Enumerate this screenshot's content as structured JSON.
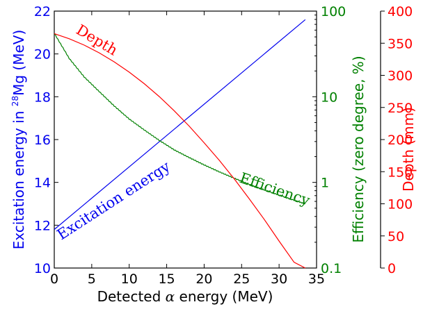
{
  "chart_data": {
    "type": "line",
    "xlabel_prefix": "Detected ",
    "xlabel_symbol": "α",
    "xlabel_suffix": " energy (MeV)",
    "x_ticks": [
      "0",
      "5",
      "10",
      "15",
      "20",
      "25",
      "30",
      "35"
    ],
    "xlim": [
      0,
      35
    ],
    "left_axis": {
      "label_prefix": "Excitation energy in ",
      "label_sup": "28",
      "label_suffix": "Mg (MeV)",
      "color": "#0000ee",
      "ticks": [
        "10",
        "12",
        "14",
        "16",
        "18",
        "20",
        "22"
      ],
      "ylim": [
        10,
        22
      ]
    },
    "mid_axis": {
      "label": "Efficiency (zero degree, %)",
      "color": "#008000",
      "scale": "log",
      "ticks": [
        "0.1",
        "1",
        "10",
        "100"
      ],
      "ylim": [
        0.1,
        100
      ]
    },
    "right_axis": {
      "label": "Depth (mm)",
      "color": "#ff0000",
      "ticks": [
        "0",
        "50",
        "100",
        "150",
        "200",
        "250",
        "300",
        "350",
        "400"
      ],
      "ylim": [
        0,
        400
      ]
    },
    "series": [
      {
        "name": "Excitation energy",
        "axis": "left",
        "color": "#0000ee",
        "x": [
          0,
          33.5
        ],
        "y": [
          11.8,
          21.6
        ]
      },
      {
        "name": "Efficiency",
        "axis": "mid",
        "color": "#008000",
        "x": [
          0,
          2,
          4,
          6,
          8,
          10,
          12,
          14,
          16,
          18,
          20,
          22,
          24,
          26,
          28,
          30,
          32,
          33.5
        ],
        "y": [
          55,
          28,
          17,
          11.5,
          7.8,
          5.5,
          4.1,
          3.1,
          2.4,
          1.95,
          1.6,
          1.33,
          1.12,
          0.95,
          0.82,
          0.71,
          0.62,
          0.56
        ]
      },
      {
        "name": "Depth",
        "axis": "right",
        "color": "#ff0000",
        "x": [
          0,
          2,
          4,
          6,
          8,
          10,
          12,
          14,
          16,
          18,
          20,
          22,
          24,
          26,
          28,
          30,
          32,
          33.5
        ],
        "y": [
          365,
          357,
          347,
          335,
          321,
          305,
          287,
          267,
          245,
          221,
          195,
          168,
          139,
          108,
          76,
          42,
          9,
          0
        ]
      }
    ]
  }
}
